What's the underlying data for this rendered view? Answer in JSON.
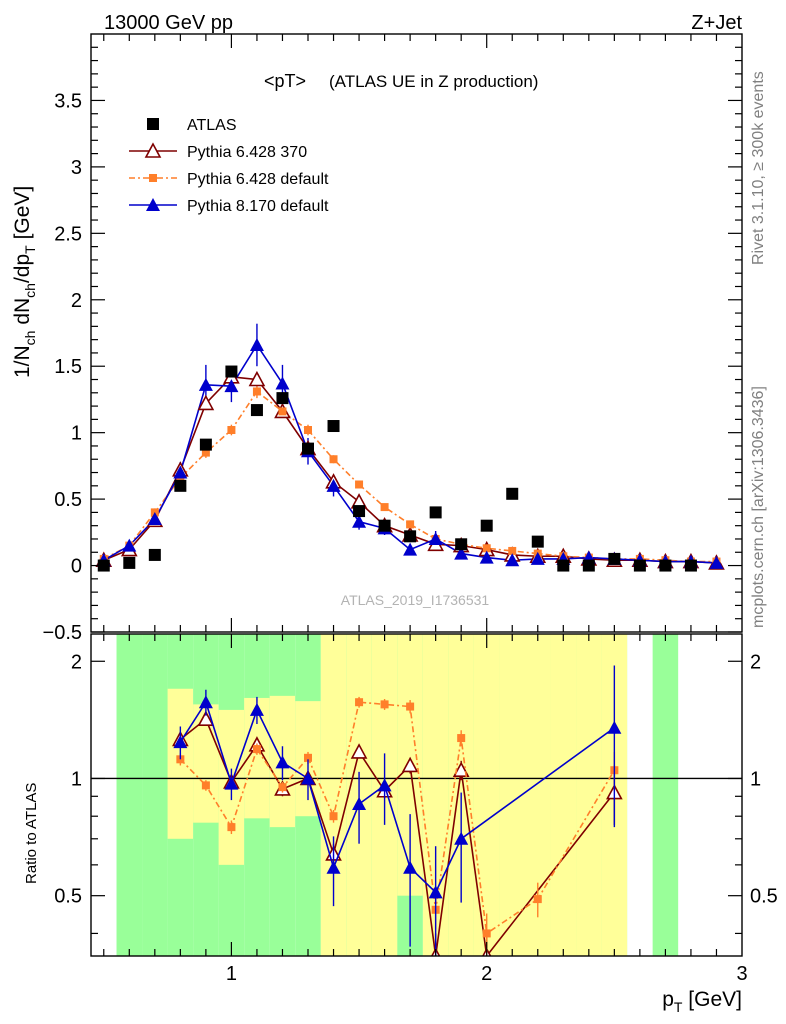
{
  "header": {
    "left": "13000 GeV pp",
    "right": "Z+Jet"
  },
  "plot_title": {
    "main": "<pT>",
    "sub": "(ATLAS UE in Z production)"
  },
  "watermark": "ATLAS_2019_I1736531",
  "side_labels": {
    "rivet": "Rivet 3.1.10, ≥ 300k events",
    "mcplots": "mcplots.cern.ch [arXiv:1306.3436]"
  },
  "colors": {
    "atlas": "#000000",
    "p6_370": "#7f0000",
    "p6_default": "#ff7f2a",
    "p8": "#0000cc",
    "band_green": "#99ff99",
    "band_yellow": "#ffff99"
  },
  "chart_data": [
    {
      "type": "scatter",
      "panel": "main",
      "xlabel": "p_T [GeV]",
      "ylabel": "1/N_ch dN_ch/dp_T [GeV]",
      "xlim": [
        0.45,
        3.0
      ],
      "ylim": [
        -0.5,
        4.0
      ],
      "x_ticks": [
        1,
        2,
        3
      ],
      "y_ticks": [
        -0.5,
        0,
        0.5,
        1,
        1.5,
        2,
        2.5,
        3,
        3.5
      ],
      "y_tick_labels": [
        "−0.5",
        "0",
        "0.5",
        "1",
        "1.5",
        "2",
        "2.5",
        "3",
        "3.5"
      ],
      "legend_position": "top-left",
      "series": [
        {
          "name": "ATLAS",
          "style": "data",
          "x": [
            0.5,
            0.6,
            0.7,
            0.8,
            0.9,
            1.0,
            1.1,
            1.2,
            1.3,
            1.4,
            1.5,
            1.6,
            1.7,
            1.8,
            1.9,
            2.0,
            2.1,
            2.2,
            2.3,
            2.4,
            2.5,
            2.6,
            2.7,
            2.8
          ],
          "y": [
            0.0,
            0.02,
            0.08,
            0.6,
            0.91,
            1.46,
            1.17,
            1.26,
            0.88,
            1.05,
            0.41,
            0.3,
            0.22,
            0.4,
            0.16,
            0.3,
            0.54,
            0.18,
            0.0,
            0.0,
            0.05,
            0.0,
            0.0,
            0.0
          ]
        },
        {
          "name": "Pythia 6.428 370",
          "style": "open-triangle-solid",
          "x": [
            0.5,
            0.6,
            0.7,
            0.8,
            0.9,
            1.0,
            1.1,
            1.2,
            1.3,
            1.4,
            1.5,
            1.6,
            1.7,
            1.8,
            1.9,
            2.0,
            2.1,
            2.2,
            2.3,
            2.4,
            2.5,
            2.6,
            2.7,
            2.8,
            2.9
          ],
          "y": [
            0.04,
            0.12,
            0.34,
            0.72,
            1.22,
            1.42,
            1.4,
            1.16,
            0.88,
            0.63,
            0.48,
            0.3,
            0.23,
            0.16,
            0.15,
            0.12,
            0.08,
            0.07,
            0.07,
            0.05,
            0.04,
            0.04,
            0.03,
            0.03,
            0.02
          ],
          "yerr": [
            0.01,
            0.02,
            0.03,
            0.04,
            0.05,
            0.05,
            0.05,
            0.04,
            0.04,
            0.03,
            0.03,
            0.02,
            0.02,
            0.02,
            0.02,
            0.01,
            0.01,
            0.01,
            0.01,
            0.01,
            0.01,
            0.01,
            0.01,
            0.01,
            0.01
          ]
        },
        {
          "name": "Pythia 6.428 default",
          "style": "square-dashdot",
          "x": [
            0.5,
            0.6,
            0.7,
            0.8,
            0.9,
            1.0,
            1.1,
            1.2,
            1.3,
            1.4,
            1.5,
            1.6,
            1.7,
            1.8,
            1.9,
            2.0,
            2.1,
            2.2,
            2.3,
            2.4,
            2.5,
            2.6,
            2.7,
            2.8,
            2.9
          ],
          "y": [
            0.05,
            0.15,
            0.4,
            0.66,
            0.85,
            1.02,
            1.31,
            1.16,
            1.02,
            0.8,
            0.61,
            0.44,
            0.31,
            0.2,
            0.16,
            0.13,
            0.11,
            0.09,
            0.07,
            0.06,
            0.05,
            0.05,
            0.04,
            0.03,
            0.03
          ],
          "yerr": [
            0.01,
            0.02,
            0.03,
            0.04,
            0.04,
            0.04,
            0.05,
            0.04,
            0.04,
            0.03,
            0.03,
            0.02,
            0.02,
            0.02,
            0.01,
            0.01,
            0.01,
            0.01,
            0.01,
            0.01,
            0.01,
            0.01,
            0.01,
            0.01,
            0.01
          ]
        },
        {
          "name": "Pythia 8.170 default",
          "style": "filled-triangle-solid",
          "x": [
            0.5,
            0.6,
            0.7,
            0.8,
            0.9,
            1.0,
            1.1,
            1.2,
            1.3,
            1.4,
            1.5,
            1.6,
            1.7,
            1.8,
            1.9,
            2.0,
            2.1,
            2.2,
            2.3,
            2.4,
            2.5,
            2.6,
            2.7,
            2.8,
            2.9
          ],
          "y": [
            0.04,
            0.15,
            0.35,
            0.7,
            1.36,
            1.35,
            1.66,
            1.37,
            0.86,
            0.6,
            0.33,
            0.28,
            0.12,
            0.2,
            0.09,
            0.06,
            0.04,
            0.05,
            0.05,
            0.06,
            0.05,
            0.04,
            0.03,
            0.03,
            0.02
          ],
          "yerr": [
            0.02,
            0.03,
            0.05,
            0.08,
            0.15,
            0.12,
            0.16,
            0.14,
            0.1,
            0.08,
            0.06,
            0.05,
            0.04,
            0.06,
            0.03,
            0.02,
            0.02,
            0.02,
            0.02,
            0.02,
            0.02,
            0.02,
            0.01,
            0.01,
            0.01
          ]
        }
      ]
    },
    {
      "type": "line",
      "panel": "ratio",
      "xlabel": "p_T [GeV]",
      "ylabel": "Ratio to ATLAS",
      "xlim": [
        0.45,
        3.0
      ],
      "ylim": [
        0.35,
        2.35
      ],
      "y_ticks": [
        0.5,
        1,
        2
      ],
      "y_tick_labels": [
        "0.5",
        "1",
        "2"
      ],
      "reference_line": 1,
      "band_x": [
        0.5,
        0.6,
        0.7,
        0.8,
        0.9,
        1.0,
        1.1,
        1.2,
        1.3,
        1.4,
        1.5,
        1.6,
        1.7,
        1.8,
        1.9,
        2.0,
        2.1,
        2.2,
        2.3,
        2.4,
        2.5,
        2.6,
        2.7,
        2.8
      ],
      "band_green": [
        [
          0.35,
          0.35
        ],
        [
          0.35,
          2.35
        ],
        [
          0.35,
          2.35
        ],
        [
          0.35,
          2.35
        ],
        [
          0.35,
          2.35
        ],
        [
          0.35,
          2.35
        ],
        [
          0.35,
          2.35
        ],
        [
          0.35,
          2.35
        ],
        [
          0.35,
          2.35
        ],
        [
          0.35,
          2.35
        ],
        [
          0.35,
          2.35
        ],
        [
          0.35,
          2.35
        ],
        [
          0.35,
          2.35
        ],
        [
          0.35,
          2.35
        ],
        [
          0.35,
          2.35
        ],
        [
          0.35,
          2.35
        ],
        [
          0.35,
          2.35
        ],
        [
          0.35,
          2.35
        ],
        [
          0.35,
          2.35
        ],
        [
          0.35,
          2.35
        ],
        [
          0.35,
          2.35
        ],
        [
          0.35,
          0.35
        ],
        [
          0.35,
          2.35
        ],
        [
          0.35,
          0.35
        ]
      ],
      "band_yellow": [
        [
          0.35,
          0.35
        ],
        [
          0.35,
          0.35
        ],
        [
          0.35,
          0.35
        ],
        [
          0.7,
          1.7
        ],
        [
          0.77,
          1.55
        ],
        [
          0.6,
          1.5
        ],
        [
          0.79,
          1.61
        ],
        [
          0.75,
          1.63
        ],
        [
          0.8,
          1.58
        ],
        [
          0.35,
          2.35
        ],
        [
          0.35,
          2.35
        ],
        [
          0.35,
          2.35
        ],
        [
          0.5,
          2.35
        ],
        [
          0.35,
          2.35
        ],
        [
          0.35,
          2.35
        ],
        [
          0.35,
          2.35
        ],
        [
          0.35,
          2.35
        ],
        [
          0.35,
          2.35
        ],
        [
          0.35,
          2.35
        ],
        [
          0.35,
          2.35
        ],
        [
          0.35,
          2.35
        ],
        [
          0.35,
          0.35
        ],
        [
          0.35,
          0.35
        ],
        [
          0.35,
          0.35
        ]
      ],
      "series": [
        {
          "name": "Pythia 6.428 370",
          "x": [
            0.8,
            0.9,
            1.0,
            1.1,
            1.2,
            1.3,
            1.4,
            1.5,
            1.6,
            1.7,
            1.8,
            1.9,
            2.0,
            2.5
          ],
          "y": [
            1.26,
            1.42,
            0.98,
            1.22,
            0.94,
            1.0,
            0.64,
            1.17,
            0.93,
            1.08,
            0.35,
            1.05,
            0.35,
            0.92
          ],
          "yerr": [
            0.05,
            0.04,
            0.04,
            0.04,
            0.04,
            0.04,
            0.04,
            0.04,
            0.04,
            0.05,
            0.05,
            0.06,
            0.05,
            0.16
          ]
        },
        {
          "name": "Pythia 6.428 default",
          "x": [
            0.8,
            0.9,
            1.0,
            1.1,
            1.2,
            1.3,
            1.4,
            1.5,
            1.6,
            1.7,
            1.8,
            1.9,
            2.0,
            2.2,
            2.5
          ],
          "y": [
            1.12,
            0.96,
            0.75,
            1.19,
            0.95,
            1.13,
            0.8,
            1.57,
            1.55,
            1.53,
            0.46,
            1.27,
            0.4,
            0.49,
            1.05
          ],
          "yerr": [
            0.04,
            0.03,
            0.03,
            0.04,
            0.03,
            0.04,
            0.03,
            0.05,
            0.05,
            0.06,
            0.05,
            0.06,
            0.05,
            0.05,
            0.12
          ]
        },
        {
          "name": "Pythia 8.170 default",
          "x": [
            0.8,
            0.9,
            1.0,
            1.1,
            1.2,
            1.3,
            1.4,
            1.5,
            1.6,
            1.7,
            1.8,
            1.9,
            2.5
          ],
          "y": [
            1.24,
            1.57,
            0.97,
            1.5,
            1.1,
            1.0,
            0.59,
            0.86,
            0.96,
            0.59,
            0.51,
            0.7,
            1.35
          ],
          "yerr": [
            0.12,
            0.12,
            0.09,
            0.12,
            0.11,
            0.12,
            0.12,
            0.18,
            0.2,
            0.22,
            0.16,
            0.22,
            0.6
          ]
        }
      ]
    }
  ]
}
